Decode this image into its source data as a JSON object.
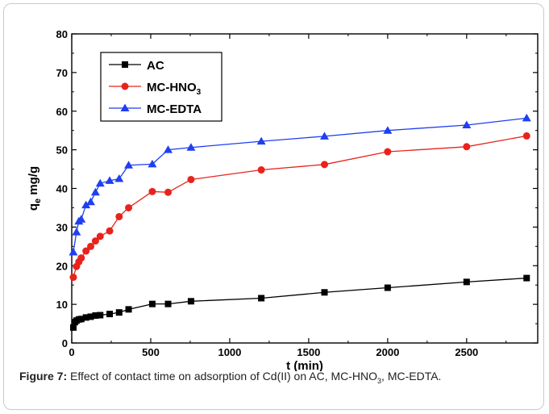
{
  "chart_data": {
    "type": "line",
    "xlabel": "t (min)",
    "ylabel": "q",
    "ylabel_sub": "e",
    "ylabel_unit": " mg/g",
    "xlim": [
      0,
      2950
    ],
    "ylim": [
      0,
      80
    ],
    "xticks": [
      0,
      500,
      1000,
      1500,
      2000,
      2500
    ],
    "yticks": [
      0,
      10,
      20,
      30,
      40,
      50,
      60,
      70,
      80
    ],
    "grid": false,
    "legend_position": "top-left",
    "series": [
      {
        "name": "AC",
        "name_main": "AC",
        "name_sub": "",
        "color": "#000000",
        "marker": "square",
        "x": [
          10,
          20,
          30,
          45,
          60,
          90,
          120,
          150,
          180,
          240,
          300,
          360,
          510,
          610,
          755,
          1200,
          1600,
          2000,
          2500,
          2880
        ],
        "y": [
          4.0,
          5.4,
          5.8,
          6.1,
          6.2,
          6.6,
          6.8,
          7.1,
          7.2,
          7.5,
          7.9,
          8.7,
          10.1,
          10.1,
          10.8,
          11.6,
          13.1,
          14.3,
          15.8,
          16.8
        ]
      },
      {
        "name": "MC-HNO3",
        "name_main": "MC-HNO",
        "name_sub": "3",
        "color": "#e8231c",
        "marker": "circle",
        "x": [
          10,
          30,
          45,
          60,
          90,
          120,
          150,
          180,
          240,
          300,
          360,
          510,
          610,
          755,
          1200,
          1600,
          2000,
          2500,
          2880
        ],
        "y": [
          17.0,
          19.8,
          21.0,
          22.0,
          23.8,
          25.0,
          26.4,
          27.6,
          29.0,
          32.7,
          35.0,
          39.2,
          39.0,
          42.3,
          44.8,
          46.2,
          49.5,
          50.8,
          53.6
        ]
      },
      {
        "name": "MC-EDTA",
        "name_main": "MC-EDTA",
        "name_sub": "",
        "color": "#1f3ff0",
        "marker": "triangle",
        "x": [
          10,
          30,
          45,
          60,
          90,
          120,
          150,
          180,
          240,
          300,
          360,
          510,
          610,
          755,
          1200,
          1600,
          2000,
          2500,
          2880
        ],
        "y": [
          23.5,
          28.7,
          31.5,
          32.0,
          35.7,
          36.5,
          39.0,
          41.3,
          42.0,
          42.5,
          46.0,
          46.3,
          50.0,
          50.6,
          52.2,
          53.5,
          55.0,
          56.4,
          58.2
        ]
      }
    ]
  },
  "caption": {
    "label": "Figure 7:",
    "text_before": " Effect of contact time on adsorption of Cd(II) on AC, MC-HNO",
    "sub": "3",
    "text_after": ", MC-EDTA."
  }
}
